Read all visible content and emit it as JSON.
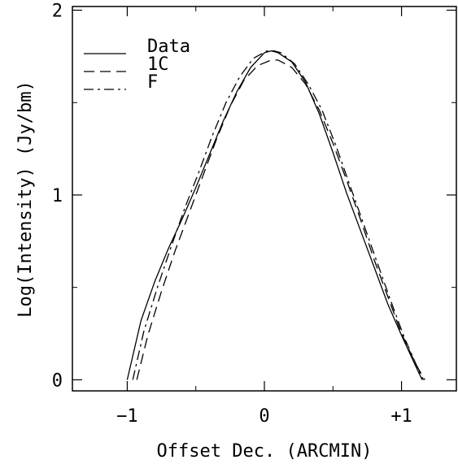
{
  "chart_data": {
    "type": "line",
    "xlabel": "Offset Dec.  (ARCMIN)",
    "ylabel": "Log(Intensity)  (Jy/bm)",
    "xlim": [
      -1.4,
      1.4
    ],
    "ylim": [
      -0.06,
      2.02
    ],
    "grid": false,
    "legend_position": "top-left",
    "x_ticks": [
      {
        "value": -1,
        "label": "−1"
      },
      {
        "value": 0,
        "label": "0"
      },
      {
        "value": 1,
        "label": "+1"
      }
    ],
    "y_ticks": [
      {
        "value": 0,
        "label": "0"
      },
      {
        "value": 1,
        "label": "1"
      },
      {
        "value": 2,
        "label": "2"
      }
    ],
    "series": [
      {
        "name": "Data",
        "dash": "solid",
        "x": [
          -1.0,
          -0.9,
          -0.8,
          -0.7,
          -0.6,
          -0.5,
          -0.4,
          -0.3,
          -0.2,
          -0.1,
          0.0,
          0.05,
          0.1,
          0.2,
          0.3,
          0.4,
          0.5,
          0.6,
          0.7,
          0.8,
          0.9,
          1.0,
          1.1,
          1.15
        ],
        "y": [
          0.0,
          0.32,
          0.53,
          0.71,
          0.87,
          1.04,
          1.22,
          1.4,
          1.56,
          1.69,
          1.77,
          1.78,
          1.77,
          1.72,
          1.61,
          1.44,
          1.23,
          1.01,
          0.81,
          0.61,
          0.41,
          0.24,
          0.08,
          0.0
        ]
      },
      {
        "name": "1C",
        "dash": "dashed",
        "x": [
          -0.93,
          -0.85,
          -0.75,
          -0.65,
          -0.55,
          -0.45,
          -0.35,
          -0.25,
          -0.15,
          -0.05,
          0.05,
          0.1,
          0.2,
          0.3,
          0.4,
          0.5,
          0.6,
          0.7,
          0.8,
          0.9,
          1.0,
          1.1,
          1.17
        ],
        "y": [
          0.0,
          0.24,
          0.48,
          0.7,
          0.9,
          1.1,
          1.3,
          1.48,
          1.62,
          1.7,
          1.73,
          1.73,
          1.69,
          1.6,
          1.46,
          1.28,
          1.08,
          0.87,
          0.65,
          0.45,
          0.25,
          0.09,
          0.0
        ]
      },
      {
        "name": "F",
        "dash": "dashdot",
        "x": [
          -0.96,
          -0.88,
          -0.78,
          -0.68,
          -0.58,
          -0.48,
          -0.38,
          -0.28,
          -0.18,
          -0.08,
          0.02,
          0.07,
          0.12,
          0.22,
          0.32,
          0.42,
          0.52,
          0.62,
          0.72,
          0.82,
          0.92,
          1.02,
          1.12,
          1.16
        ],
        "y": [
          0.0,
          0.26,
          0.5,
          0.72,
          0.93,
          1.12,
          1.32,
          1.5,
          1.64,
          1.74,
          1.78,
          1.78,
          1.77,
          1.71,
          1.6,
          1.46,
          1.27,
          1.06,
          0.85,
          0.64,
          0.43,
          0.23,
          0.06,
          0.0
        ]
      }
    ]
  }
}
